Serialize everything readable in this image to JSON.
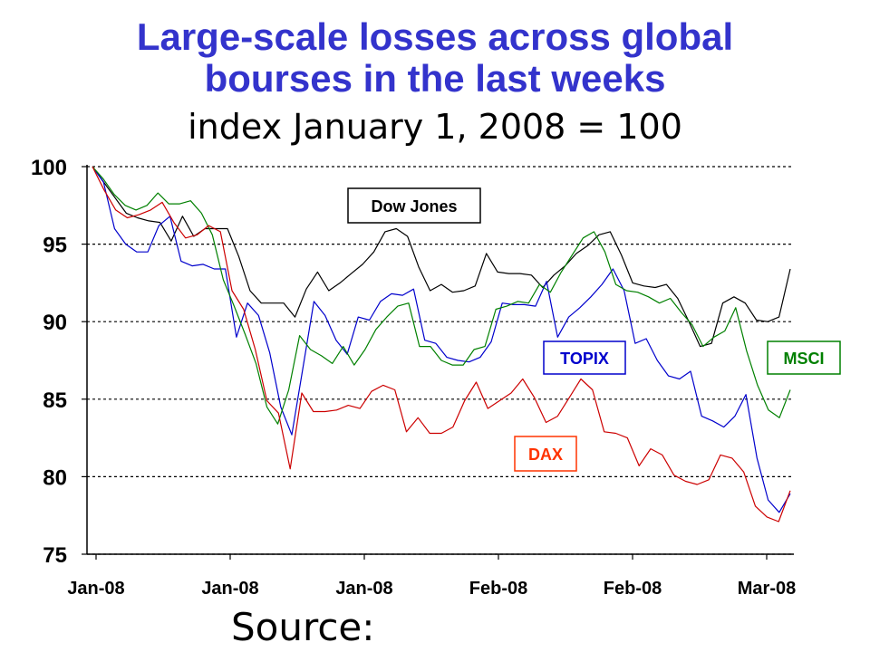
{
  "page": {
    "title_line1": "Large-scale losses across global",
    "title_line2": "bourses in the last weeks",
    "subtitle": "index January 1, 2008 = 100",
    "source": "Source:"
  },
  "chart_data": {
    "type": "line",
    "title": "Large-scale losses across global bourses in the last weeks",
    "subtitle": "index January 1, 2008 = 100",
    "ylim": [
      75,
      100
    ],
    "yticks": [
      75,
      80,
      85,
      90,
      95,
      100
    ],
    "xtick_labels": [
      "Jan-08",
      "Jan-08",
      "Jan-08",
      "Feb-08",
      "Feb-08",
      "Mar-08"
    ],
    "grid": "horizontal dotted",
    "series": [
      {
        "name": "Dow Jones",
        "color": "#000000",
        "label_box_border": "#000000",
        "values": [
          100,
          99,
          98,
          97,
          96.7,
          96.5,
          96.4,
          95.2,
          96.8,
          95.5,
          96,
          96,
          96,
          94.2,
          92,
          91.2,
          91.2,
          91.2,
          90.3,
          92.1,
          93.2,
          92,
          92.5,
          93.1,
          93.7,
          94.5,
          95.8,
          96,
          95.5,
          93.5,
          92,
          92.4,
          91.9,
          92,
          92.3,
          94.4,
          93.2,
          93.1,
          93.1,
          93,
          92.2,
          93,
          93.6,
          94.4,
          94.9,
          95.6,
          95.8,
          94.3,
          92.5,
          92.3,
          92.2,
          92.4,
          91.5,
          90,
          88.4,
          88.6,
          91.2,
          91.6,
          91.2,
          90.1,
          90,
          90.3,
          93.4
        ]
      },
      {
        "name": "TOPIX",
        "color": "#0000cc",
        "label_box_border": "#0000cc",
        "values": [
          100,
          99,
          96,
          95,
          94.5,
          94.5,
          96.2,
          96.8,
          93.9,
          93.6,
          93.7,
          93.4,
          93.4,
          89,
          91.2,
          90.4,
          88,
          84.5,
          82.7,
          87,
          91.3,
          90.4,
          88.8,
          87.9,
          90.3,
          90.1,
          91.3,
          91.8,
          91.7,
          92.1,
          88.8,
          88.6,
          87.7,
          87.5,
          87.4,
          87.7,
          88.7,
          91.2,
          91.1,
          91.1,
          91,
          92.6,
          89,
          90.3,
          90.9,
          91.6,
          92.4,
          93.4,
          92,
          88.6,
          88.9,
          87.5,
          86.5,
          86.3,
          86.8,
          83.9,
          83.6,
          83.2,
          83.9,
          85.3,
          81.2,
          78.5,
          77.7,
          78.9
        ]
      },
      {
        "name": "MSCI",
        "color": "#008000",
        "label_box_border": "#008000",
        "values": [
          100,
          99.2,
          98.2,
          97.5,
          97.2,
          97.5,
          98.3,
          97.6,
          97.6,
          97.8,
          97,
          95.6,
          92.7,
          91,
          89.2,
          87.3,
          84.5,
          83.4,
          85.6,
          89.1,
          88.2,
          87.8,
          87.3,
          88.4,
          87.2,
          88.2,
          89.5,
          90.3,
          91,
          91.2,
          88.4,
          88.4,
          87.5,
          87.2,
          87.2,
          88.2,
          88.4,
          90.8,
          91,
          91.3,
          91.2,
          92.4,
          91.9,
          93.2,
          94.3,
          95.4,
          95.8,
          94.5,
          92.4,
          92,
          91.9,
          91.6,
          91.2,
          91.5,
          90.6,
          89.8,
          88.4,
          89,
          89.4,
          90.9,
          88.1,
          85.9,
          84.3,
          83.8,
          85.6
        ]
      },
      {
        "name": "DAX",
        "color": "#cc0000",
        "label_box_border": "#ff3300",
        "label_color": "#ff3300",
        "values": [
          100,
          98.5,
          97.2,
          96.7,
          96.9,
          97.2,
          97.7,
          96.4,
          95.4,
          95.6,
          96.2,
          95.8,
          92,
          90.8,
          88.2,
          84.9,
          84.1,
          80.5,
          85.4,
          84.2,
          84.2,
          84.3,
          84.6,
          84.4,
          85.5,
          85.9,
          85.6,
          82.9,
          83.8,
          82.8,
          82.8,
          83.2,
          84.9,
          86.1,
          84.4,
          84.9,
          85.4,
          86.3,
          85.1,
          83.5,
          83.9,
          85.1,
          86.3,
          85.6,
          82.9,
          82.8,
          82.5,
          80.7,
          81.8,
          81.4,
          80.1,
          79.7,
          79.5,
          79.8,
          81.4,
          81.2,
          80.3,
          78.1,
          77.4,
          77.1,
          79.1
        ]
      }
    ],
    "series_labels_text": [
      "Dow Jones",
      "TOPIX",
      "MSCI",
      "DAX"
    ]
  }
}
